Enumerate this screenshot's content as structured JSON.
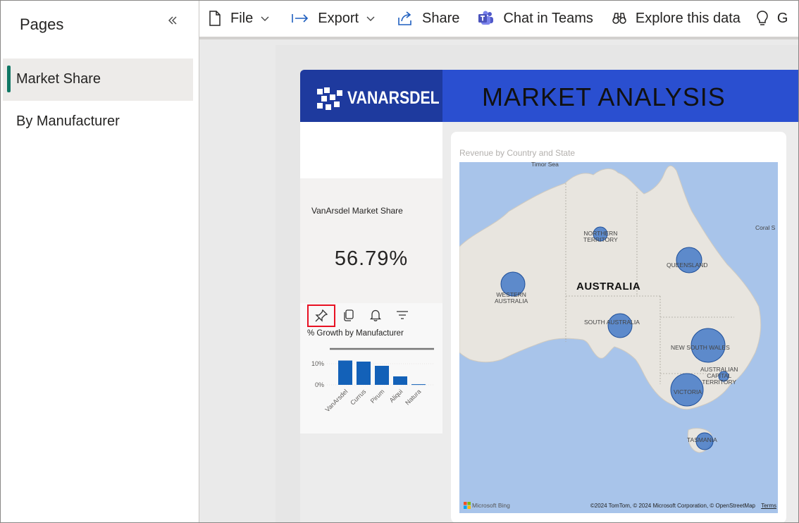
{
  "sidebar": {
    "title": "Pages",
    "pages": [
      {
        "label": "Market Share",
        "active": true
      },
      {
        "label": "By Manufacturer",
        "active": false
      }
    ]
  },
  "toolbar": {
    "file": "File",
    "export": "Export",
    "share": "Share",
    "chat_in_teams": "Chat in Teams",
    "explore": "Explore this data",
    "more": "G"
  },
  "report": {
    "logo_text": "VANARSDEL",
    "title": "MARKET ANALYSIS",
    "kpi": {
      "label": "VanArsdel Market Share",
      "value": "56.79%"
    },
    "growth_visual": {
      "title": "% Growth by Manufacturer"
    },
    "map": {
      "title": "Revenue by Country and State",
      "country_label": "AUSTRALIA",
      "states": [
        {
          "name": "NORTHERN\nTERRITORY"
        },
        {
          "name": "QUEENSLAND"
        },
        {
          "name": "WESTERN\nAUSTRALIA"
        },
        {
          "name": "SOUTH AUSTRALIA"
        },
        {
          "name": "NEW SOUTH WALES"
        },
        {
          "name": "AUSTRALIAN\nCAPITAL\nTERRITORY"
        },
        {
          "name": "VICTORIA"
        },
        {
          "name": "TASMANIA"
        }
      ],
      "sea_labels": [
        "Timor Sea",
        "Coral S"
      ],
      "provider": "Microsoft Bing",
      "attribution": "©2024 TomTom, © 2024 Microsoft Corporation, © OpenStreetMap",
      "terms": "Terms"
    }
  },
  "chart_data": {
    "type": "bar",
    "title": "% Growth by Manufacturer",
    "categories": [
      "VanArsdel",
      "Currus",
      "Pirum",
      "Aliqui",
      "Natura"
    ],
    "values": [
      11.5,
      11,
      9,
      4,
      0.3
    ],
    "yticks": [
      "10%",
      "0%"
    ],
    "ylim": [
      0,
      15
    ],
    "color": "#1361b8"
  },
  "colors": {
    "accent_active": "#117865",
    "logo_bg": "#1e3a9e",
    "title_bg": "#2a4fd0",
    "bubble": "#3a73c6",
    "highlight": "#e81123"
  }
}
